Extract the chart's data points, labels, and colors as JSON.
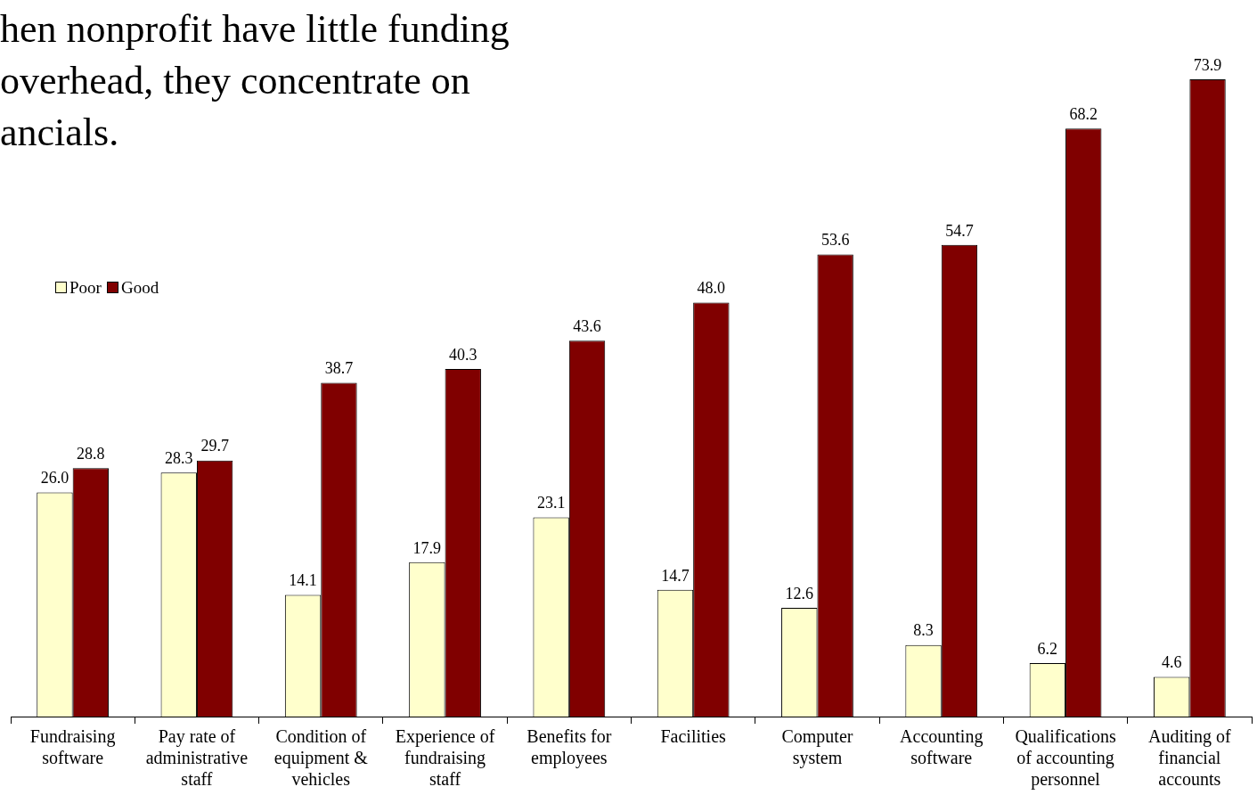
{
  "chart_data": {
    "type": "bar",
    "title": "hen nonprofit have little funding overhead, they concentrate on ancials.",
    "categories": [
      "Fundraising software",
      "Pay rate of administrative staff",
      "Condition of equipment & vehicles",
      "Experience of fundraising staff",
      "Benefits for employees",
      "Facilities",
      "Computer system",
      "Accounting software",
      "Qualifications of accounting personnel",
      "Auditing of financial accounts"
    ],
    "series": [
      {
        "name": "Poor",
        "color": "#ffffcc",
        "values": [
          26.0,
          28.3,
          14.1,
          17.9,
          23.1,
          14.7,
          12.6,
          8.3,
          6.2,
          4.6
        ],
        "value_labels": [
          "26.0",
          "28.3",
          "14.1",
          "17.9",
          "23.1",
          "14.7",
          "12.6",
          "8.3",
          "6.2",
          "4.6"
        ]
      },
      {
        "name": "Good",
        "color": "#800000",
        "values": [
          28.8,
          29.7,
          38.7,
          40.3,
          43.6,
          48.0,
          53.6,
          54.7,
          68.2,
          73.9
        ],
        "value_labels": [
          "28.8",
          "29.7",
          "38.7",
          "40.3",
          "43.6",
          "48.0",
          "53.6",
          "54.7",
          "68.2",
          "73.9"
        ]
      }
    ],
    "legend": "left",
    "grid": false,
    "tick_labels": "x"
  }
}
